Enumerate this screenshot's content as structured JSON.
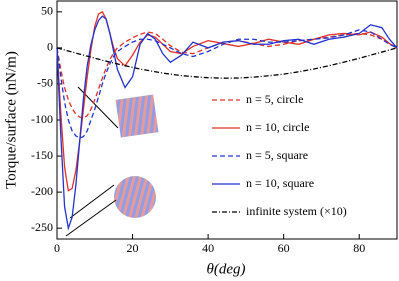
{
  "chart_data": {
    "type": "line",
    "xlabel": "θ(deg)",
    "ylabel": "Torque/surface (nN/m)",
    "xlim": [
      0,
      90
    ],
    "ylim": [
      -265,
      65
    ],
    "xticks": [
      0,
      20,
      40,
      60,
      80
    ],
    "yticks": [
      -250,
      -200,
      -150,
      -100,
      -50,
      0,
      50
    ],
    "x": [
      0,
      1,
      2,
      3,
      4,
      5,
      6,
      7,
      8,
      9,
      10,
      11,
      12,
      13,
      14,
      15,
      16,
      18,
      20,
      22,
      24,
      26,
      28,
      30,
      33,
      36,
      40,
      44,
      48,
      52,
      56,
      60,
      64,
      68,
      72,
      76,
      80,
      83,
      86,
      88,
      90
    ],
    "series": [
      {
        "name": "n = 5, circle",
        "color": "#e0302a",
        "dash": "5,3",
        "values": [
          0,
          -30,
          -55,
          -72,
          -84,
          -92,
          -96,
          -97,
          -94,
          -85,
          -72,
          -57,
          -42,
          -28,
          -16,
          -7,
          0,
          8,
          14,
          19,
          22,
          20,
          12,
          3,
          -6,
          -8,
          0,
          8,
          10,
          6,
          2,
          5,
          10,
          12,
          15,
          18,
          20,
          18,
          12,
          6,
          0
        ]
      },
      {
        "name": "n = 10, circle",
        "color": "#e0302a",
        "dash": "none",
        "values": [
          0,
          -90,
          -165,
          -198,
          -195,
          -170,
          -130,
          -85,
          -40,
          -2,
          30,
          47,
          50,
          40,
          20,
          0,
          -15,
          -25,
          -10,
          8,
          18,
          15,
          5,
          -5,
          -8,
          2,
          10,
          6,
          2,
          6,
          12,
          8,
          5,
          12,
          18,
          20,
          18,
          22,
          15,
          6,
          0
        ]
      },
      {
        "name": "n = 5, square",
        "color": "#2233cc",
        "dash": "5,3",
        "values": [
          0,
          -40,
          -75,
          -100,
          -115,
          -122,
          -125,
          -123,
          -115,
          -100,
          -85,
          -68,
          -50,
          -35,
          -22,
          -12,
          -5,
          2,
          8,
          12,
          12,
          10,
          5,
          0,
          -8,
          -12,
          -5,
          5,
          12,
          12,
          8,
          8,
          10,
          12,
          14,
          18,
          25,
          22,
          12,
          5,
          0
        ]
      },
      {
        "name": "n = 10, square",
        "color": "#2233cc",
        "dash": "none",
        "values": [
          0,
          -120,
          -220,
          -250,
          -235,
          -190,
          -130,
          -70,
          -25,
          5,
          25,
          38,
          44,
          40,
          20,
          -5,
          -30,
          -55,
          -40,
          5,
          20,
          12,
          -8,
          -20,
          -10,
          8,
          0,
          8,
          10,
          5,
          5,
          10,
          12,
          5,
          12,
          15,
          20,
          32,
          28,
          12,
          0
        ]
      },
      {
        "name": "infinite system (×10)",
        "color": "#000000",
        "dash": "5,2,1,2",
        "values": [
          0,
          -1.5,
          -2.9,
          -4.4,
          -5.8,
          -7.3,
          -8.7,
          -10.1,
          -11.5,
          -12.8,
          -14.4,
          -15.6,
          -17.1,
          -18.4,
          -19.7,
          -21,
          -22.2,
          -24.7,
          -27,
          -29.3,
          -31.2,
          -33.1,
          -34.9,
          -36.4,
          -38.5,
          -39.9,
          -41.4,
          -42,
          -41.8,
          -40.6,
          -38.7,
          -36.4,
          -33.1,
          -29.3,
          -24.7,
          -19.7,
          -14.4,
          -10.1,
          -5.8,
          -2.9,
          0
        ]
      }
    ]
  }
}
